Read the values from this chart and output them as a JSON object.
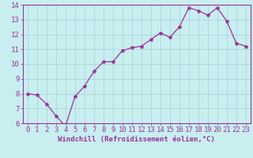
{
  "x": [
    0,
    1,
    2,
    3,
    4,
    5,
    6,
    7,
    8,
    9,
    10,
    11,
    12,
    13,
    14,
    15,
    16,
    17,
    18,
    19,
    20,
    21,
    22,
    23
  ],
  "y": [
    8.0,
    7.9,
    7.3,
    6.5,
    5.8,
    7.8,
    8.5,
    9.5,
    10.15,
    10.15,
    10.9,
    11.1,
    11.2,
    11.65,
    12.1,
    11.8,
    12.5,
    13.8,
    13.6,
    13.3,
    13.8,
    12.9,
    11.4,
    11.2
  ],
  "line_color": "#993399",
  "marker": "*",
  "bg_color": "#c8eef0",
  "grid_color": "#b0d8dc",
  "axis_label_color": "#993399",
  "tick_color": "#993399",
  "xlabel": "Windchill (Refroidissement éolien,°C)",
  "ylim": [
    6,
    14
  ],
  "xlim": [
    -0.5,
    23.5
  ],
  "yticks": [
    6,
    7,
    8,
    9,
    10,
    11,
    12,
    13,
    14
  ],
  "xticks": [
    0,
    1,
    2,
    3,
    4,
    5,
    6,
    7,
    8,
    9,
    10,
    11,
    12,
    13,
    14,
    15,
    16,
    17,
    18,
    19,
    20,
    21,
    22,
    23
  ],
  "xlabel_fontsize": 6.5,
  "tick_fontsize": 6.5,
  "title": ""
}
